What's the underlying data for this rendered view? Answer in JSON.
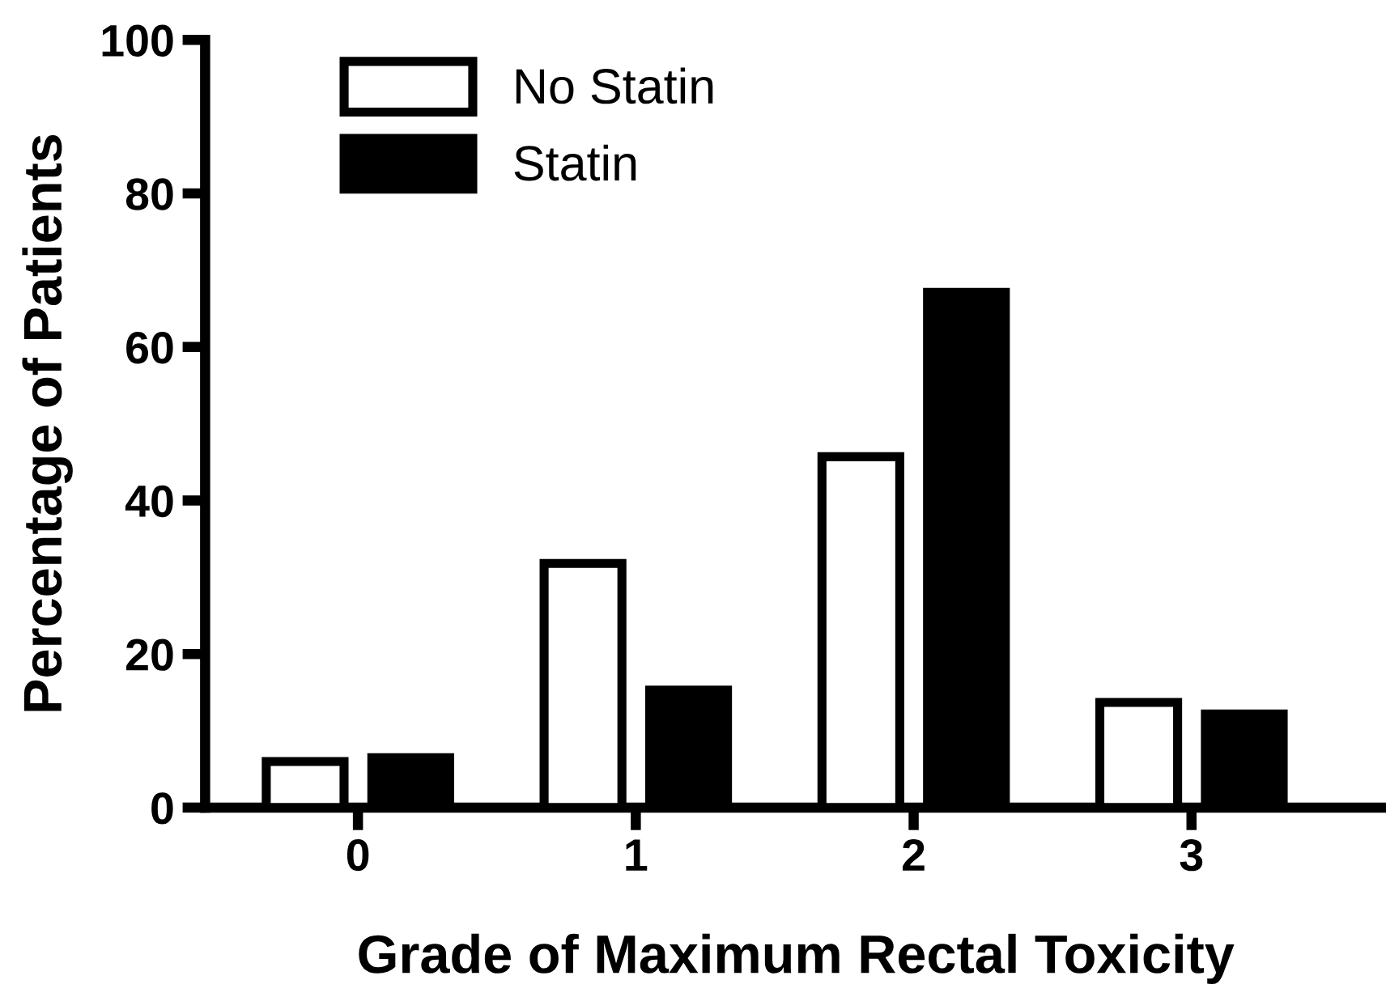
{
  "chart_data": {
    "type": "bar",
    "xlabel": "Grade of Maximum Rectal Toxicity",
    "ylabel": "Percentage of Patients",
    "categories": [
      "0",
      "1",
      "2",
      "3"
    ],
    "series": [
      {
        "name": "No Statin",
        "color": "#ffffff",
        "values": [
          6.0,
          31.8,
          45.7,
          13.7
        ]
      },
      {
        "name": "Statin",
        "color": "#000000",
        "values": [
          6.5,
          15.3,
          67.1,
          12.2
        ]
      }
    ],
    "ylim": [
      0,
      100
    ],
    "yticks": [
      0,
      20,
      40,
      60,
      80,
      100
    ],
    "grid": false,
    "legend": "top left"
  }
}
